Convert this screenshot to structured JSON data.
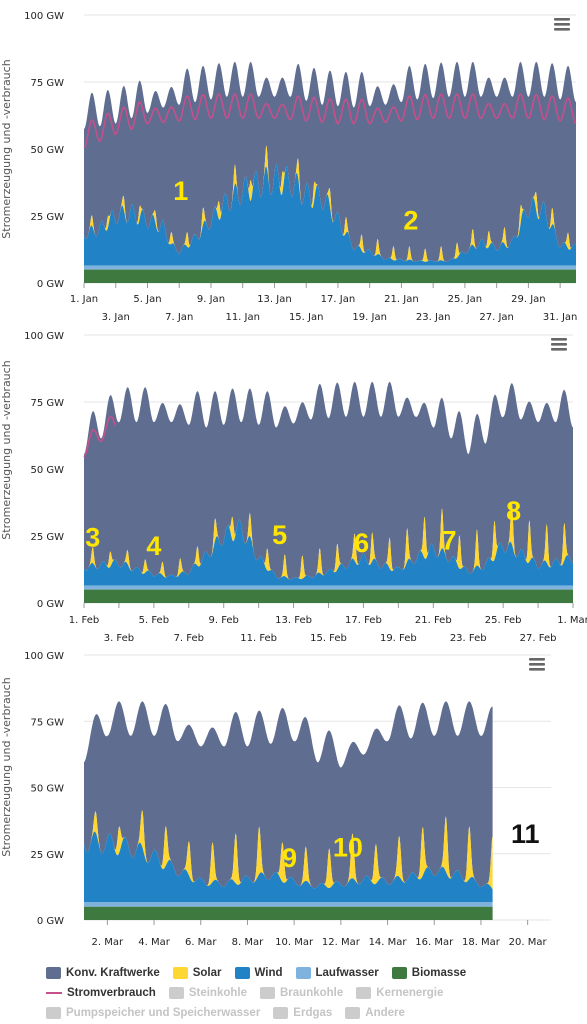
{
  "chart_data": [
    {
      "type": "area",
      "ylabel": "Stromerzeugung und -verbrauch",
      "yticks": [
        "0 GW",
        "25 GW",
        "50 GW",
        "75 GW",
        "100 GW"
      ],
      "ylim": [
        0,
        100
      ],
      "xlim": [
        1,
        32
      ],
      "xticks_top": [
        {
          "d": 1,
          "l": "1. Jan"
        },
        {
          "d": 5,
          "l": "5. Jan"
        },
        {
          "d": 9,
          "l": "9. Jan"
        },
        {
          "d": 13,
          "l": "13. Jan"
        },
        {
          "d": 17,
          "l": "17. Jan"
        },
        {
          "d": 21,
          "l": "21. Jan"
        },
        {
          "d": 25,
          "l": "25. Jan"
        },
        {
          "d": 29,
          "l": "29. Jan"
        }
      ],
      "xticks_bottom": [
        {
          "d": 3,
          "l": "3. Jan"
        },
        {
          "d": 7,
          "l": "7. Jan"
        },
        {
          "d": 11,
          "l": "11. Jan"
        },
        {
          "d": 15,
          "l": "15. Jan"
        },
        {
          "d": 19,
          "l": "19. Jan"
        },
        {
          "d": 23,
          "l": "23. Jan"
        },
        {
          "d": 27,
          "l": "27. Jan"
        },
        {
          "d": 31,
          "l": "31. Jan"
        }
      ],
      "end": 32,
      "load_end": 32,
      "series": {
        "biomasse": 5,
        "laufwasser": [
          [
            1,
            1.5
          ],
          [
            32,
            1.5
          ]
        ],
        "wind": [
          [
            1,
            14
          ],
          [
            2,
            16
          ],
          [
            3,
            22
          ],
          [
            4,
            23
          ],
          [
            5,
            20
          ],
          [
            6,
            17
          ],
          [
            6.5,
            9
          ],
          [
            7,
            6
          ],
          [
            8,
            12
          ],
          [
            9,
            20
          ],
          [
            10,
            28
          ],
          [
            11,
            33
          ],
          [
            12,
            36
          ],
          [
            13,
            38
          ],
          [
            14,
            37
          ],
          [
            15,
            31
          ],
          [
            16,
            30
          ],
          [
            17,
            20
          ],
          [
            18,
            8
          ],
          [
            19,
            6
          ],
          [
            20,
            3
          ],
          [
            22,
            2
          ],
          [
            24,
            2
          ],
          [
            25,
            6
          ],
          [
            26,
            10
          ],
          [
            27,
            8
          ],
          [
            28,
            10
          ],
          [
            29,
            26
          ],
          [
            30,
            24
          ],
          [
            31,
            9
          ],
          [
            32,
            8
          ]
        ],
        "solar": [
          [
            2,
            4
          ],
          [
            4,
            5
          ],
          [
            6,
            4
          ],
          [
            8,
            6
          ],
          [
            10,
            7
          ],
          [
            12,
            8
          ],
          [
            13,
            8
          ],
          [
            15,
            7
          ],
          [
            17,
            6
          ],
          [
            19,
            6
          ],
          [
            21,
            5
          ],
          [
            23,
            5
          ],
          [
            25,
            6
          ],
          [
            27,
            6
          ],
          [
            29,
            7
          ],
          [
            31,
            6
          ]
        ],
        "konv_base": [
          [
            1,
            64
          ],
          [
            3,
            66
          ],
          [
            4,
            68
          ],
          [
            6,
            72
          ],
          [
            8,
            74
          ],
          [
            10,
            76
          ],
          [
            12,
            76
          ],
          [
            14,
            76
          ],
          [
            16,
            73
          ],
          [
            18,
            72
          ],
          [
            20,
            73
          ],
          [
            22,
            75
          ],
          [
            24,
            76
          ],
          [
            26,
            76
          ],
          [
            28,
            76
          ],
          [
            30,
            76
          ],
          [
            32,
            74
          ]
        ],
        "konv_amp": 13,
        "load_base": [
          [
            1,
            55
          ],
          [
            3,
            60
          ],
          [
            5,
            64
          ],
          [
            7,
            65
          ],
          [
            9,
            66
          ],
          [
            11,
            66
          ],
          [
            13,
            66
          ],
          [
            15,
            65
          ],
          [
            17,
            64
          ],
          [
            19,
            64
          ],
          [
            21,
            65
          ],
          [
            23,
            66
          ],
          [
            25,
            66
          ],
          [
            27,
            66
          ],
          [
            29,
            66
          ],
          [
            31,
            65
          ],
          [
            32,
            64
          ]
        ],
        "load_amp": 9
      },
      "annotations": [
        {
          "text": "1",
          "d": 7.1,
          "v": 31,
          "color": "#ffe600"
        },
        {
          "text": "2",
          "d": 21.6,
          "v": 20,
          "color": "#ffe600"
        }
      ]
    },
    {
      "type": "area",
      "ylabel": "Stromerzeugung und -verbrauch",
      "yticks": [
        "0 GW",
        "25 GW",
        "50 GW",
        "75 GW",
        "100 GW"
      ],
      "ylim": [
        0,
        100
      ],
      "xlim": [
        1,
        29
      ],
      "xticks_top": [
        {
          "d": 1,
          "l": "1. Feb"
        },
        {
          "d": 5,
          "l": "5. Feb"
        },
        {
          "d": 9,
          "l": "9. Feb"
        },
        {
          "d": 13,
          "l": "13. Feb"
        },
        {
          "d": 17,
          "l": "17. Feb"
        },
        {
          "d": 21,
          "l": "21. Feb"
        },
        {
          "d": 25,
          "l": "25. Feb"
        },
        {
          "d": 29,
          "l": "1. Mar"
        }
      ],
      "xticks_bottom": [
        {
          "d": 3,
          "l": "3. Feb"
        },
        {
          "d": 7,
          "l": "7. Feb"
        },
        {
          "d": 11,
          "l": "11. Feb"
        },
        {
          "d": 15,
          "l": "15. Feb"
        },
        {
          "d": 19,
          "l": "19. Feb"
        },
        {
          "d": 23,
          "l": "23. Feb"
        },
        {
          "d": 27,
          "l": "27. Feb"
        }
      ],
      "end": 29,
      "load_end": 2.8,
      "series": {
        "biomasse": 5,
        "laufwasser": [
          [
            1,
            1.5
          ],
          [
            29,
            1.5
          ]
        ],
        "wind": [
          [
            1,
            8
          ],
          [
            2,
            9
          ],
          [
            3,
            10
          ],
          [
            4,
            7
          ],
          [
            5,
            5
          ],
          [
            6,
            4
          ],
          [
            7,
            6
          ],
          [
            8,
            13
          ],
          [
            9,
            22
          ],
          [
            10,
            25
          ],
          [
            11,
            12
          ],
          [
            12,
            4
          ],
          [
            13,
            3
          ],
          [
            14,
            4
          ],
          [
            15,
            6
          ],
          [
            16,
            9
          ],
          [
            17,
            12
          ],
          [
            18,
            9
          ],
          [
            19,
            7
          ],
          [
            20,
            12
          ],
          [
            21,
            16
          ],
          [
            22,
            12
          ],
          [
            23,
            6
          ],
          [
            24,
            9
          ],
          [
            25,
            18
          ],
          [
            26,
            14
          ],
          [
            27,
            9
          ],
          [
            28,
            10
          ],
          [
            29,
            12
          ]
        ],
        "solar": [
          [
            2,
            6
          ],
          [
            4,
            5
          ],
          [
            6,
            5
          ],
          [
            8,
            8
          ],
          [
            10,
            9
          ],
          [
            12,
            8
          ],
          [
            14,
            9
          ],
          [
            16,
            10
          ],
          [
            18,
            11
          ],
          [
            20,
            13
          ],
          [
            21,
            18
          ],
          [
            22,
            12
          ],
          [
            24,
            14
          ],
          [
            26,
            16
          ],
          [
            28,
            14
          ]
        ],
        "konv_base": [
          [
            1,
            62
          ],
          [
            2,
            68
          ],
          [
            3,
            74
          ],
          [
            4,
            74
          ],
          [
            6,
            74
          ],
          [
            8,
            72
          ],
          [
            10,
            74
          ],
          [
            12,
            72
          ],
          [
            14,
            75
          ],
          [
            16,
            76
          ],
          [
            18,
            76
          ],
          [
            20,
            76
          ],
          [
            22,
            68
          ],
          [
            23,
            62
          ],
          [
            24,
            66
          ],
          [
            25,
            76
          ],
          [
            27,
            74
          ],
          [
            28,
            74
          ],
          [
            29,
            72
          ]
        ],
        "konv_amp": 13,
        "load_base": [
          [
            1,
            58
          ],
          [
            2,
            64
          ],
          [
            3,
            68
          ]
        ],
        "load_amp": 7
      },
      "annotations": [
        {
          "text": "3",
          "d": 1.5,
          "v": 21,
          "color": "#ffe600"
        },
        {
          "text": "4",
          "d": 5,
          "v": 18,
          "color": "#ffe600"
        },
        {
          "text": "5",
          "d": 12.2,
          "v": 22,
          "color": "#ffe600"
        },
        {
          "text": "6",
          "d": 16.9,
          "v": 19,
          "color": "#ffe600"
        },
        {
          "text": "7",
          "d": 21.9,
          "v": 20,
          "color": "#ffe600"
        },
        {
          "text": "8",
          "d": 25.6,
          "v": 31,
          "color": "#ffe600"
        }
      ]
    },
    {
      "type": "area",
      "ylabel": "Stromerzeugung und -verbrauch",
      "yticks": [
        "0 GW",
        "25 GW",
        "50 GW",
        "75 GW",
        "100 GW"
      ],
      "ylim": [
        0,
        100
      ],
      "xlim": [
        1,
        21
      ],
      "xticks_top": [],
      "xticks_bottom": [
        {
          "d": 2,
          "l": "2. Mar"
        },
        {
          "d": 4,
          "l": "4. Mar"
        },
        {
          "d": 6,
          "l": "6. Mar"
        },
        {
          "d": 8,
          "l": "8. Mar"
        },
        {
          "d": 10,
          "l": "10. Mar"
        },
        {
          "d": 12,
          "l": "12. Mar"
        },
        {
          "d": 14,
          "l": "14. Mar"
        },
        {
          "d": 16,
          "l": "16. Mar"
        },
        {
          "d": 18,
          "l": "18. Mar"
        },
        {
          "d": 20,
          "l": "20. Mar"
        }
      ],
      "end": 18.5,
      "load_end": 0,
      "series": {
        "biomasse": 5,
        "laufwasser": [
          [
            1,
            1.8
          ],
          [
            21,
            1.8
          ]
        ],
        "wind": [
          [
            1,
            27
          ],
          [
            2,
            26
          ],
          [
            3,
            24
          ],
          [
            4,
            20
          ],
          [
            5,
            14
          ],
          [
            6,
            9
          ],
          [
            7,
            8
          ],
          [
            8,
            10
          ],
          [
            9,
            12
          ],
          [
            10,
            9
          ],
          [
            11,
            7
          ],
          [
            12,
            8
          ],
          [
            13,
            10
          ],
          [
            14,
            9
          ],
          [
            15,
            11
          ],
          [
            16,
            14
          ],
          [
            17,
            12
          ],
          [
            18,
            8
          ],
          [
            19,
            4
          ],
          [
            20,
            2
          ],
          [
            21,
            2
          ]
        ],
        "solar": [
          [
            2,
            8
          ],
          [
            3,
            12
          ],
          [
            4,
            16
          ],
          [
            6,
            12
          ],
          [
            7,
            18
          ],
          [
            8,
            20
          ],
          [
            9,
            16
          ],
          [
            10,
            14
          ],
          [
            11,
            12
          ],
          [
            12,
            18
          ],
          [
            13,
            16
          ],
          [
            14,
            14
          ],
          [
            16,
            20
          ],
          [
            17,
            22
          ],
          [
            18,
            18
          ],
          [
            19,
            22
          ],
          [
            20,
            24
          ],
          [
            21,
            24
          ]
        ],
        "konv_base": [
          [
            1,
            66
          ],
          [
            2,
            76
          ],
          [
            4,
            76
          ],
          [
            6,
            72
          ],
          [
            8,
            72
          ],
          [
            10,
            74
          ],
          [
            11,
            66
          ],
          [
            12,
            64
          ],
          [
            14,
            74
          ],
          [
            16,
            76
          ],
          [
            18,
            76
          ],
          [
            18.5,
            74
          ]
        ],
        "konv_amp": 13,
        "load_base": [],
        "load_amp": 0
      },
      "annotations": [
        {
          "text": "9",
          "d": 9.8,
          "v": 20,
          "color": "#ffe600"
        },
        {
          "text": "10",
          "d": 12.3,
          "v": 24,
          "color": "#ffe600"
        },
        {
          "text": "11",
          "d": 19.9,
          "v": 29,
          "color": "#111111"
        }
      ]
    }
  ],
  "legend": {
    "row1": [
      {
        "label": "Konv. Kraftwerke",
        "color": "#5f6d91",
        "active": true
      },
      {
        "label": "Solar",
        "color": "#ffd733",
        "active": true
      },
      {
        "label": "Wind",
        "color": "#2182c5",
        "active": true
      },
      {
        "label": "Laufwasser",
        "color": "#7fb2dc",
        "active": true
      },
      {
        "label": "Biomasse",
        "color": "#3e7a3f",
        "active": true
      }
    ],
    "row2": [
      {
        "label": "Stromverbrauch",
        "color": "#c5508b",
        "active": true,
        "line": true
      },
      {
        "label": "Steinkohle",
        "color": "#cccccc",
        "active": false
      },
      {
        "label": "Braunkohle",
        "color": "#cccccc",
        "active": false
      },
      {
        "label": "Kernenergie",
        "color": "#cccccc",
        "active": false
      }
    ],
    "row3": [
      {
        "label": "Pumpspeicher und Speicherwasser",
        "color": "#cccccc",
        "active": false
      },
      {
        "label": "Erdgas",
        "color": "#cccccc",
        "active": false
      },
      {
        "label": "Andere",
        "color": "#cccccc",
        "active": false
      }
    ]
  },
  "colors": {
    "konv": "#5f6d91",
    "solar": "#ffd733",
    "wind": "#2182c5",
    "laufwasser": "#7fb2dc",
    "biomasse": "#3e7a3f",
    "load": "#c5508b",
    "menu": "#666666"
  },
  "menu_icon": "hamburger-menu-icon"
}
